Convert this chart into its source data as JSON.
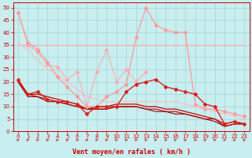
{
  "xlabel": "Vent moyen/en rafales ( km/h )",
  "xlim": [
    -0.5,
    23.5
  ],
  "ylim": [
    0,
    52
  ],
  "yticks": [
    0,
    5,
    10,
    15,
    20,
    25,
    30,
    35,
    40,
    45,
    50
  ],
  "xticks": [
    0,
    1,
    2,
    3,
    4,
    5,
    6,
    7,
    8,
    9,
    10,
    11,
    12,
    13,
    14,
    15,
    16,
    17,
    18,
    19,
    20,
    21,
    22,
    23
  ],
  "bg_color": "#c8eef0",
  "grid_color": "#a8d8d8",
  "line_pink_rafales": {
    "y": [
      48,
      35,
      32,
      27,
      26,
      21,
      24,
      10,
      24,
      33,
      20,
      25,
      20,
      24,
      null,
      null,
      null,
      null,
      null,
      null,
      null,
      null,
      null,
      null
    ],
    "color": "#ffaaaa",
    "marker": "D",
    "ms": 2.0,
    "lw": 0.8
  },
  "line_flat_35": {
    "y": [
      35,
      35,
      35,
      35,
      35,
      35,
      35,
      35,
      35,
      35,
      35,
      35,
      35,
      35,
      35,
      35,
      35,
      35,
      35,
      35,
      35,
      35,
      35,
      35
    ],
    "color": "#ffaaaa",
    "marker": null,
    "lw": 0.9
  },
  "line_upper_pink": {
    "y": [
      48,
      36,
      33,
      28,
      22,
      18,
      14,
      10,
      10,
      14,
      16,
      19,
      38,
      50,
      43,
      41,
      40,
      40,
      11,
      9,
      9,
      8,
      7,
      6
    ],
    "color": "#ff9999",
    "marker": "D",
    "ms": 2.0,
    "lw": 0.9
  },
  "line_diagonal_pink": {
    "y": [
      36,
      33,
      29,
      25,
      23,
      20,
      17,
      14,
      13,
      12,
      12,
      12,
      12,
      12,
      12,
      12,
      12,
      11,
      10,
      9,
      8,
      7,
      6,
      5
    ],
    "color": "#ffbbbb",
    "marker": null,
    "lw": 0.8
  },
  "line_red_marker": {
    "y": [
      21,
      15,
      16,
      13,
      12,
      12,
      11,
      7,
      10,
      10,
      10,
      16,
      19,
      20,
      21,
      18,
      17,
      16,
      15,
      11,
      10,
      3,
      4,
      3
    ],
    "color": "#ee2222",
    "marker": "D",
    "ms": 2.0,
    "lw": 0.9
  },
  "line_red1": {
    "y": [
      21,
      15,
      15,
      14,
      13,
      12,
      11,
      9,
      10,
      10,
      11,
      11,
      11,
      10,
      10,
      9,
      9,
      8,
      7,
      6,
      5,
      3,
      4,
      3
    ],
    "color": "#cc0000",
    "marker": null,
    "lw": 0.9
  },
  "line_red2": {
    "y": [
      20,
      15,
      14,
      13,
      12,
      11,
      10,
      9,
      9,
      9,
      10,
      10,
      10,
      9,
      9,
      8,
      8,
      7,
      6,
      5,
      5,
      2,
      3,
      3
    ],
    "color": "#bb0000",
    "marker": null,
    "lw": 0.8
  },
  "line_red3": {
    "y": [
      20,
      14,
      14,
      12,
      12,
      11,
      10,
      9,
      9,
      9,
      10,
      10,
      10,
      9,
      8,
      8,
      7,
      7,
      6,
      5,
      4,
      2,
      3,
      3
    ],
    "color": "#990000",
    "marker": null,
    "lw": 0.8
  },
  "line_cross": {
    "y": [
      21,
      15,
      16,
      13,
      12,
      12,
      11,
      7,
      10,
      10,
      10,
      16,
      19,
      20,
      21,
      18,
      17,
      16,
      15,
      11,
      10,
      3,
      4,
      3
    ],
    "color": "#cc2222",
    "marker": "+",
    "ms": 3.0,
    "lw": 0.5
  },
  "arrow_directions": [
    1,
    1,
    1,
    1,
    1,
    1,
    0,
    1,
    1,
    1,
    1,
    1,
    1,
    1,
    1,
    0,
    1,
    1,
    0,
    1,
    1,
    1,
    1,
    1
  ],
  "arrow_color": "#cc3333"
}
